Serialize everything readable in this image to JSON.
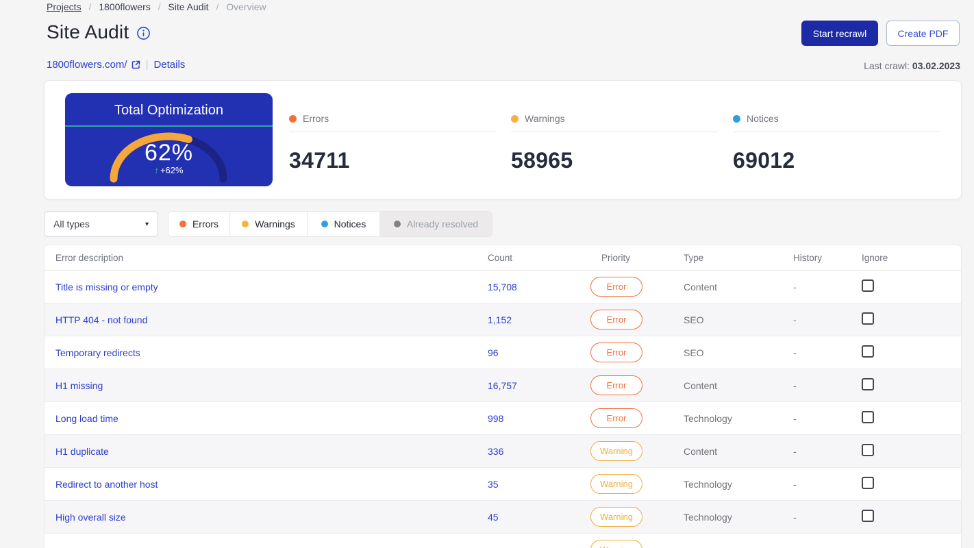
{
  "breadcrumb": {
    "separator": "/",
    "items": [
      {
        "label": "Projects"
      },
      {
        "label": "1800flowers"
      },
      {
        "label": "Site Audit"
      },
      {
        "label": "Overview"
      }
    ]
  },
  "header": {
    "title": "Site Audit",
    "start_recrawl_label": "Start recrawl",
    "create_pdf_label": "Create PDF",
    "domain": "1800flowers.com/",
    "divider": "|",
    "details_label": "Details",
    "last_crawl_label": "Last crawl:",
    "last_crawl_date": "03.02.2023"
  },
  "summary": {
    "gauge": {
      "title": "Total Optimization",
      "percent": 62,
      "value": "62%",
      "arrow": "↑",
      "change": "+62%"
    },
    "metrics": [
      {
        "label": "Errors",
        "value": "34711",
        "color": "#f4713a"
      },
      {
        "label": "Warnings",
        "value": "58965",
        "color": "#f3b33f"
      },
      {
        "label": "Notices",
        "value": "69012",
        "color": "#2f9fe0"
      }
    ]
  },
  "filters": {
    "dropdown_value": "All types",
    "caret": "▾",
    "tabs": [
      {
        "label": "Errors",
        "color": "#f4713a",
        "active": true
      },
      {
        "label": "Warnings",
        "color": "#f3b33f",
        "active": true
      },
      {
        "label": "Notices",
        "color": "#2f9fe0",
        "active": true
      },
      {
        "label": "Already resolved",
        "color": "#7f8287",
        "active": false
      }
    ]
  },
  "table": {
    "columns": [
      "Error description",
      "Count",
      "Priority",
      "Type",
      "History",
      "Ignore"
    ],
    "rows": [
      {
        "description": "Title is missing or empty",
        "count": "15,708",
        "priority": "Error",
        "type": "Content",
        "history": "-"
      },
      {
        "description": "HTTP 404 - not found",
        "count": "1,152",
        "priority": "Error",
        "type": "SEO",
        "history": "-"
      },
      {
        "description": "Temporary redirects",
        "count": "96",
        "priority": "Error",
        "type": "SEO",
        "history": "-"
      },
      {
        "description": "H1 missing",
        "count": "16,757",
        "priority": "Error",
        "type": "Content",
        "history": "-"
      },
      {
        "description": "Long load time",
        "count": "998",
        "priority": "Error",
        "type": "Technology",
        "history": "-"
      },
      {
        "description": "H1 duplicate",
        "count": "336",
        "priority": "Warning",
        "type": "Content",
        "history": "-"
      },
      {
        "description": "Redirect to another host",
        "count": "35",
        "priority": "Warning",
        "type": "Technology",
        "history": "-"
      },
      {
        "description": "High overall size",
        "count": "45",
        "priority": "Warning",
        "type": "Technology",
        "history": "-"
      },
      {
        "priority": "Warning"
      }
    ]
  },
  "colors": {
    "accent_link": "#2c3ecc",
    "primary_button": "#1c2aa5",
    "gauge_panel": "#2230b2",
    "gauge_track": "#1b2384",
    "gauge_fill": "#f6a73c",
    "gauge_divider": "#2ba9a4",
    "error": "#f2703f",
    "warning": "#efad3f",
    "notice": "#2f9fe0",
    "resolved": "#7f8287"
  }
}
